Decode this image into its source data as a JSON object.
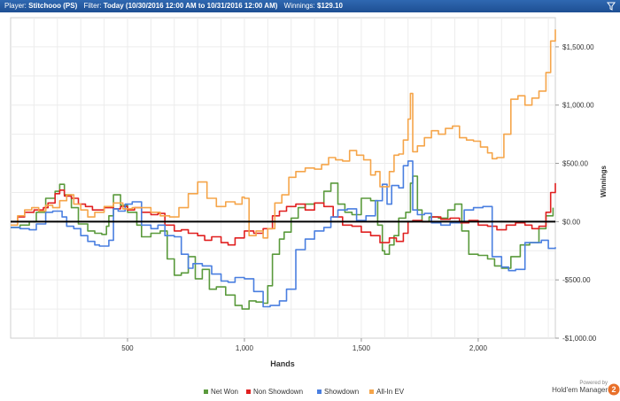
{
  "header": {
    "player_label": "Player:",
    "player_value": "Stitchooo (PS)",
    "filter_label": "Filter:",
    "filter_value": "Today (10/30/2016 12:00 AM to 10/31/2016 12:00 AM)",
    "winnings_label": "Winnings:",
    "winnings_value": "$129.10",
    "filter_icon": "funnel-icon"
  },
  "brand": {
    "powered_by": "Powered by",
    "name": "Hold'em Manager",
    "badge": "2"
  },
  "colors": {
    "header_bg": "#2a5fa8",
    "net_won": "#5a9a3c",
    "non_showdown": "#e02020",
    "showdown": "#4a7fe0",
    "allin_ev": "#f5a54a",
    "zero_line": "#000000"
  },
  "chart_data": {
    "type": "line",
    "xlabel": "Hands",
    "ylabel": "Winnings",
    "xlim": [
      0,
      2330
    ],
    "ylim": [
      -1000,
      1750
    ],
    "x_ticks": [
      500,
      1000,
      1500,
      2000
    ],
    "x_tick_labels": [
      "500",
      "1,000",
      "1,500",
      "2,000"
    ],
    "y_ticks": [
      -1000,
      -500,
      0,
      500,
      1000,
      1500
    ],
    "y_tick_labels": [
      "-$1,000.00",
      "-$500.00",
      "$0.00",
      "$500.00",
      "$1,000.00",
      "$1,500.00"
    ],
    "y_axis_position": "right",
    "grid": true,
    "legend_position": "bottom-center",
    "zero_line": true,
    "series": [
      {
        "name": "Net Won",
        "color": "#5a9a3c",
        "x": [
          0,
          40,
          80,
          110,
          150,
          190,
          210,
          230,
          260,
          290,
          330,
          360,
          390,
          410,
          420,
          440,
          470,
          500,
          540,
          560,
          600,
          640,
          670,
          700,
          730,
          760,
          790,
          820,
          850,
          880,
          920,
          960,
          990,
          1020,
          1050,
          1080,
          1100,
          1120,
          1150,
          1170,
          1200,
          1230,
          1260,
          1300,
          1340,
          1370,
          1400,
          1430,
          1460,
          1500,
          1540,
          1570,
          1590,
          1600,
          1620,
          1640,
          1660,
          1690,
          1710,
          1720,
          1740,
          1760,
          1790,
          1830,
          1870,
          1900,
          1930,
          1960,
          2000,
          2040,
          2070,
          2100,
          2140,
          2180,
          2220,
          2260,
          2290,
          2320
        ],
        "y": [
          -50,
          -30,
          0,
          80,
          200,
          260,
          320,
          230,
          120,
          -20,
          -80,
          -100,
          -110,
          -40,
          50,
          230,
          140,
          80,
          -30,
          -130,
          -100,
          -80,
          -320,
          -460,
          -440,
          -300,
          -490,
          -410,
          -580,
          -560,
          -630,
          -720,
          -750,
          -680,
          -690,
          -700,
          -550,
          -280,
          -150,
          -90,
          30,
          120,
          150,
          160,
          260,
          330,
          150,
          80,
          60,
          200,
          180,
          -30,
          -250,
          -280,
          -200,
          -120,
          30,
          80,
          330,
          390,
          100,
          0,
          40,
          30,
          100,
          150,
          -80,
          -280,
          -290,
          -320,
          -380,
          -400,
          -300,
          -200,
          -180,
          -60,
          50,
          120
        ]
      },
      {
        "name": "Non Showdown",
        "color": "#e02020",
        "x": [
          0,
          30,
          60,
          100,
          140,
          160,
          190,
          210,
          230,
          260,
          290,
          320,
          350,
          400,
          440,
          470,
          500,
          530,
          560,
          600,
          630,
          660,
          700,
          730,
          760,
          800,
          830,
          860,
          900,
          930,
          960,
          1000,
          1040,
          1080,
          1120,
          1150,
          1180,
          1220,
          1260,
          1300,
          1340,
          1380,
          1420,
          1460,
          1500,
          1540,
          1580,
          1620,
          1650,
          1680,
          1700,
          1720,
          1760,
          1800,
          1840,
          1880,
          1920,
          1960,
          2000,
          2040,
          2080,
          2120,
          2160,
          2200,
          2230,
          2260,
          2290,
          2310,
          2330
        ],
        "y": [
          0,
          40,
          80,
          100,
          120,
          160,
          240,
          270,
          220,
          200,
          150,
          130,
          100,
          120,
          110,
          130,
          100,
          120,
          80,
          60,
          70,
          -30,
          -80,
          -70,
          -100,
          -120,
          -160,
          -130,
          -180,
          -200,
          -140,
          -80,
          -100,
          -60,
          50,
          90,
          130,
          150,
          100,
          160,
          130,
          40,
          -30,
          -40,
          -90,
          -120,
          -180,
          -140,
          -170,
          -100,
          0,
          10,
          0,
          40,
          20,
          30,
          -10,
          10,
          -30,
          -40,
          -70,
          -30,
          -10,
          -30,
          -60,
          -40,
          80,
          250,
          330
        ]
      },
      {
        "name": "Showdown",
        "color": "#4a7fe0",
        "x": [
          0,
          40,
          80,
          110,
          150,
          180,
          220,
          240,
          270,
          300,
          330,
          360,
          380,
          420,
          440,
          460,
          490,
          520,
          560,
          600,
          630,
          660,
          700,
          730,
          760,
          780,
          820,
          860,
          900,
          930,
          960,
          1000,
          1040,
          1080,
          1110,
          1150,
          1180,
          1220,
          1260,
          1300,
          1340,
          1370,
          1400,
          1440,
          1480,
          1520,
          1560,
          1590,
          1610,
          1630,
          1660,
          1680,
          1700,
          1720,
          1740,
          1770,
          1800,
          1840,
          1880,
          1920,
          1940,
          1980,
          2020,
          2060,
          2100,
          2130,
          2160,
          2200,
          2240,
          2270,
          2300,
          2330
        ],
        "y": [
          -50,
          -60,
          -70,
          -20,
          80,
          90,
          40,
          -40,
          -60,
          -120,
          -170,
          -200,
          -210,
          -160,
          110,
          90,
          150,
          170,
          -30,
          -60,
          -30,
          -120,
          -130,
          -280,
          -400,
          -360,
          -380,
          -450,
          -510,
          -520,
          -480,
          -490,
          -600,
          -730,
          -720,
          -680,
          -580,
          -240,
          -150,
          -80,
          -50,
          40,
          100,
          110,
          10,
          50,
          180,
          320,
          150,
          310,
          290,
          480,
          520,
          100,
          60,
          70,
          -10,
          -30,
          -10,
          0,
          100,
          120,
          130,
          -300,
          -390,
          -420,
          -410,
          -180,
          -180,
          -160,
          -230,
          -220
        ]
      },
      {
        "name": "All-In EV",
        "color": "#f5a54a",
        "x": [
          0,
          30,
          60,
          90,
          120,
          150,
          180,
          210,
          240,
          270,
          300,
          330,
          360,
          400,
          440,
          480,
          520,
          560,
          600,
          640,
          680,
          720,
          760,
          800,
          840,
          880,
          920,
          960,
          990,
          1000,
          1020,
          1050,
          1080,
          1100,
          1130,
          1160,
          1190,
          1220,
          1260,
          1300,
          1330,
          1360,
          1390,
          1420,
          1450,
          1480,
          1510,
          1540,
          1560,
          1580,
          1600,
          1620,
          1640,
          1660,
          1680,
          1700,
          1710,
          1720,
          1740,
          1770,
          1800,
          1830,
          1860,
          1890,
          1920,
          1950,
          1980,
          2010,
          2040,
          2060,
          2080,
          2110,
          2140,
          2170,
          2200,
          2230,
          2260,
          2290,
          2310,
          2330
        ],
        "y": [
          -30,
          50,
          100,
          120,
          90,
          140,
          120,
          180,
          230,
          150,
          100,
          40,
          80,
          130,
          160,
          110,
          120,
          120,
          80,
          50,
          40,
          120,
          240,
          340,
          200,
          130,
          170,
          150,
          210,
          200,
          -120,
          -80,
          -140,
          -60,
          160,
          230,
          380,
          430,
          460,
          450,
          490,
          550,
          530,
          520,
          610,
          570,
          530,
          400,
          430,
          300,
          300,
          430,
          570,
          580,
          700,
          880,
          1100,
          600,
          650,
          720,
          780,
          750,
          800,
          820,
          720,
          700,
          690,
          640,
          590,
          540,
          550,
          750,
          1050,
          1080,
          1000,
          1060,
          1120,
          1280,
          1550,
          1650
        ]
      }
    ]
  }
}
